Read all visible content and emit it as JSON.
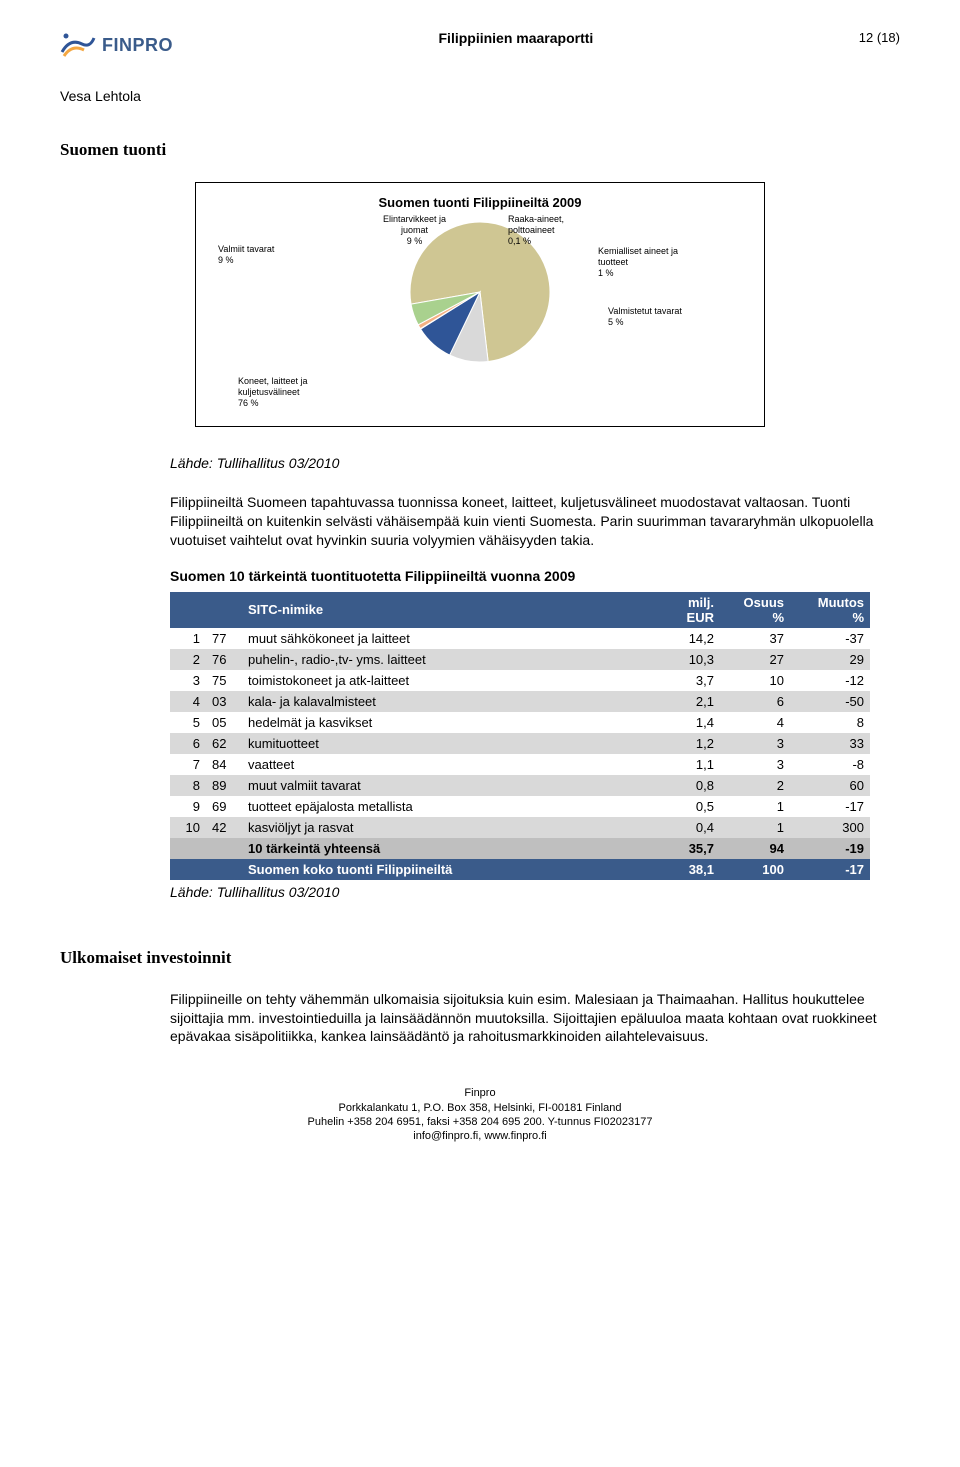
{
  "header": {
    "logo_text": "FINPRO",
    "title": "Filippiinien maaraportti",
    "page_number": "12 (18)"
  },
  "author": "Vesa Lehtola",
  "section_import": {
    "heading": "Suomen tuonti",
    "chart": {
      "type": "pie",
      "title": "Suomen tuonti Filippiineiltä 2009",
      "background_color": "#ffffff",
      "slices": [
        {
          "label": "Koneet, laitteet ja\nkuljetusvälineet\n76 %",
          "value": 76,
          "color": "#cfc693"
        },
        {
          "label": "Valmiit tavarat\n9 %",
          "value": 9,
          "color": "#d9d9d9"
        },
        {
          "label": "Elintarvikkeet ja\njuomat\n9 %",
          "value": 9,
          "color": "#2f5597"
        },
        {
          "label": "Raaka-aineet,\npolttoaineet\n0,1 %",
          "value": 0.1,
          "color": "#8faadc"
        },
        {
          "label": "Kemialliset aineet ja\ntuotteet\n1 %",
          "value": 1,
          "color": "#f4b183"
        },
        {
          "label": "Valmistetut tavarat\n5 %",
          "value": 5,
          "color": "#a9d18e"
        }
      ],
      "label_fontsize": 9,
      "title_fontsize": 13,
      "radius": 70
    },
    "source": "Lähde: Tullihallitus 03/2010",
    "paragraph": "Filippiineiltä Suomeen tapahtuvassa tuonnissa koneet, laitteet, kuljetusvälineet muodostavat valtaosan. Tuonti Filippiineiltä on kuitenkin selvästi vähäisempää kuin vienti Suomesta. Parin suurimman tavararyhmän ulkopuolella vuotuiset vaihtelut ovat hyvinkin suuria volyymien vähäisyyden takia.",
    "table_title": "Suomen 10 tärkeintä tuontituotetta Filippiineiltä vuonna 2009",
    "table": {
      "columns": [
        "",
        "",
        "SITC-nimike",
        "milj.\nEUR",
        "Osuus\n%",
        "Muutos\n%"
      ],
      "col_align": [
        "r",
        "l",
        "l",
        "r",
        "r",
        "r"
      ],
      "col_widths": [
        "36px",
        "36px",
        "auto",
        "80px",
        "70px",
        "80px"
      ],
      "header_bg": "#3a5b8a",
      "header_color": "#ffffff",
      "row_grey_bg": "#d9d9d9",
      "row_sum_bg": "#bfbfbf",
      "row_total_bg": "#3a5b8a",
      "rows": [
        {
          "cells": [
            "1",
            "77",
            "muut sähkökoneet ja laitteet",
            "14,2",
            "37",
            "-37"
          ],
          "grey": false
        },
        {
          "cells": [
            "2",
            "76",
            "puhelin-, radio-,tv- yms. laitteet",
            "10,3",
            "27",
            "29"
          ],
          "grey": true
        },
        {
          "cells": [
            "3",
            "75",
            "toimistokoneet ja atk-laitteet",
            "3,7",
            "10",
            "-12"
          ],
          "grey": false
        },
        {
          "cells": [
            "4",
            "03",
            "kala- ja kalavalmisteet",
            "2,1",
            "6",
            "-50"
          ],
          "grey": true
        },
        {
          "cells": [
            "5",
            "05",
            "hedelmät ja kasvikset",
            "1,4",
            "4",
            "8"
          ],
          "grey": false
        },
        {
          "cells": [
            "6",
            "62",
            "kumituotteet",
            "1,2",
            "3",
            "33"
          ],
          "grey": true
        },
        {
          "cells": [
            "7",
            "84",
            "vaatteet",
            "1,1",
            "3",
            "-8"
          ],
          "grey": false
        },
        {
          "cells": [
            "8",
            "89",
            "muut valmiit tavarat",
            "0,8",
            "2",
            "60"
          ],
          "grey": true
        },
        {
          "cells": [
            "9",
            "69",
            "tuotteet epäjalosta metallista",
            "0,5",
            "1",
            "-17"
          ],
          "grey": false
        },
        {
          "cells": [
            "10",
            "42",
            "kasviöljyt ja rasvat",
            "0,4",
            "1",
            "300"
          ],
          "grey": true
        }
      ],
      "summary": {
        "cells": [
          "",
          "",
          "10 tärkeintä yhteensä",
          "35,7",
          "94",
          "-19"
        ]
      },
      "total": {
        "cells": [
          "",
          "",
          "Suomen koko tuonti Filippiineiltä",
          "38,1",
          "100",
          "-17"
        ]
      }
    },
    "table_source": "Lähde: Tullihallitus 03/2010"
  },
  "section_invest": {
    "heading": "Ulkomaiset investoinnit",
    "paragraph": "Filippiineille on tehty vähemmän ulkomaisia sijoituksia kuin esim. Malesiaan ja Thaimaahan. Hallitus houkuttelee sijoittajia mm. investointieduilla ja lainsäädännön muutoksilla. Sijoittajien epäluuloa maata kohtaan ovat ruokkineet epävakaa sisäpolitiikka, kankea lainsäädäntö ja rahoitusmarkkinoiden ailahtelevaisuus."
  },
  "footer": {
    "line1": "Finpro",
    "line2": "Porkkalankatu 1, P.O. Box 358, Helsinki, FI-00181 Finland",
    "line3": "Puhelin +358 204 6951, faksi +358 204 695 200. Y-tunnus FI02023177",
    "line4": "info@finpro.fi, www.finpro.fi"
  },
  "logo_colors": {
    "blue": "#2f5597",
    "orange": "#f4a742"
  }
}
